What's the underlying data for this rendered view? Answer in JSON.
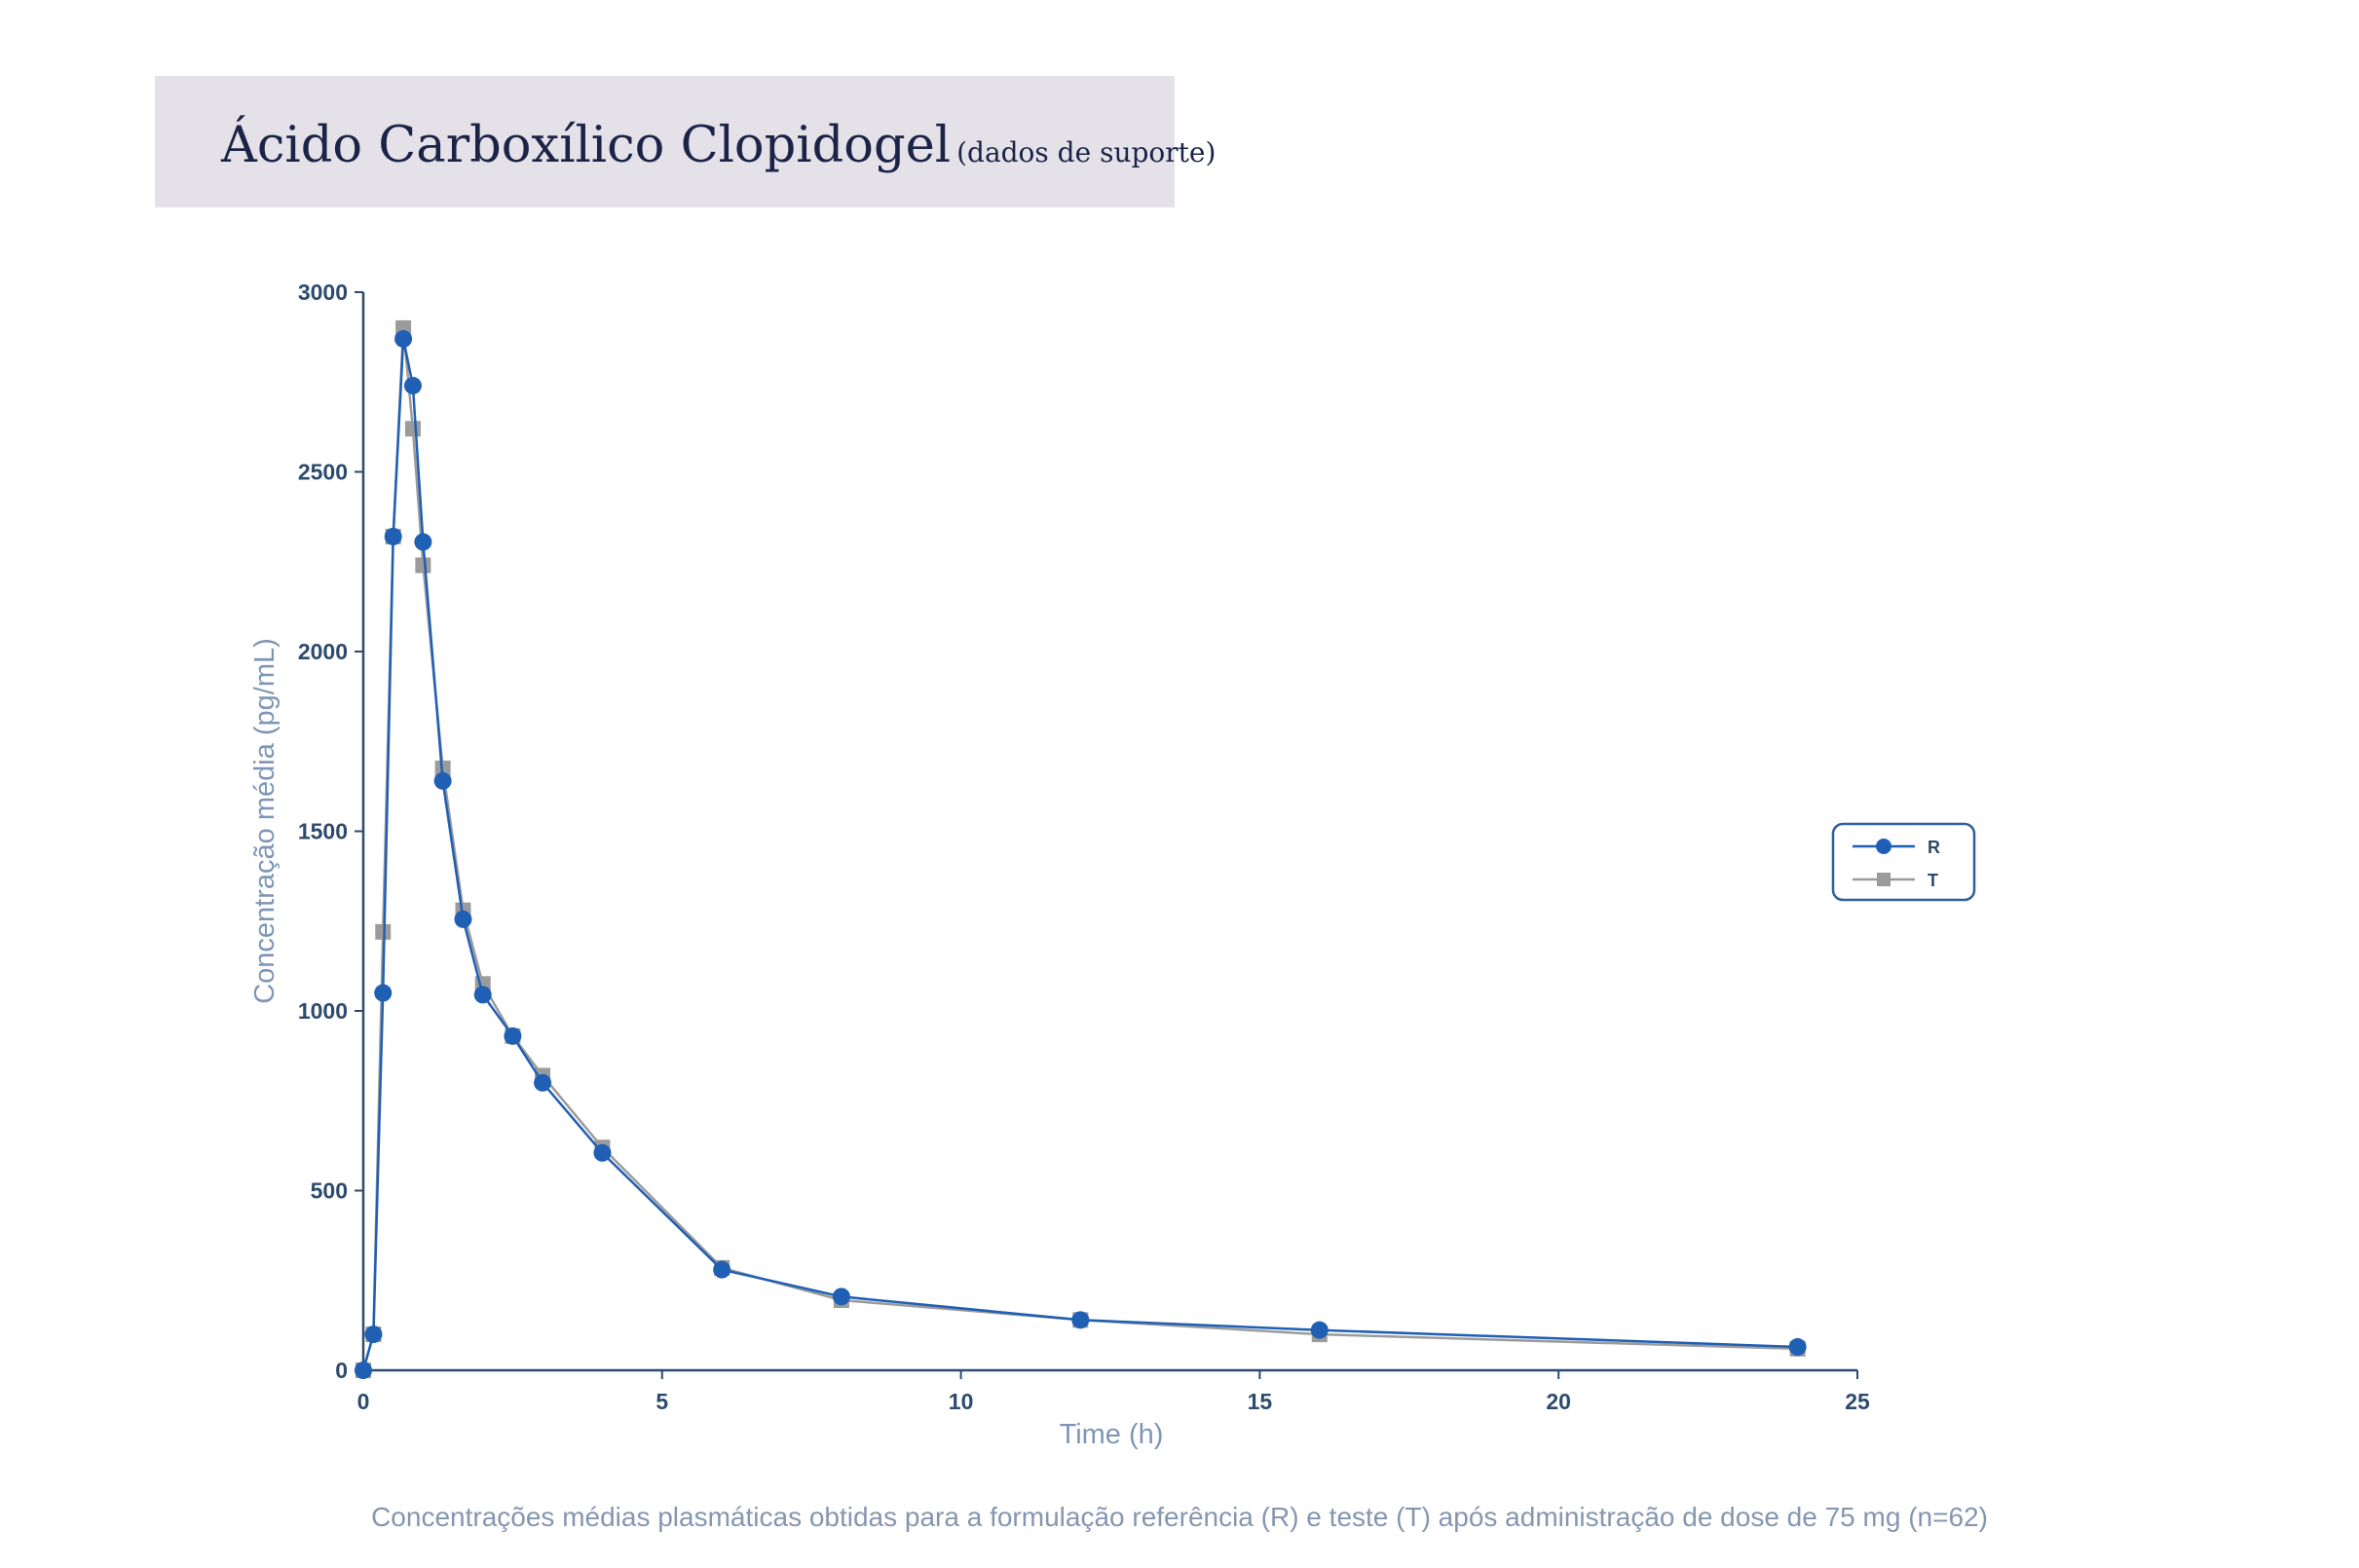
{
  "header": {
    "title": "Ácido Carboxílico Clopidogel",
    "subtitle": "(dados de suporte)"
  },
  "caption": "Concentrações médias plasmáticas obtidas para a formulação referência (R)  e teste (T) após administração de dose de 75 mg (n=62)",
  "colors": {
    "series_R": "#1f5fb4",
    "series_T": "#9b9b9b",
    "axis": "#2e4a6d",
    "title_bg": "#e4e2e8"
  },
  "chart_data": {
    "type": "line",
    "xlabel": "Time (h)",
    "ylabel": "Concentração média (pg/mL)",
    "xlim": [
      0,
      25
    ],
    "ylim": [
      0,
      3000
    ],
    "xticks": [
      0,
      5,
      10,
      15,
      20,
      25
    ],
    "yticks": [
      0,
      500,
      1000,
      1500,
      2000,
      2500,
      3000
    ],
    "grid": false,
    "legend_position": "right",
    "series": [
      {
        "name": "R",
        "marker": "circle",
        "x": [
          0,
          0.17,
          0.33,
          0.5,
          0.67,
          0.83,
          1.0,
          1.33,
          1.67,
          2.0,
          2.5,
          3.0,
          4.0,
          6.0,
          8.0,
          12.0,
          16.0,
          24.0
        ],
        "y": [
          0,
          100,
          1050,
          2320,
          2870,
          2740,
          2305,
          1640,
          1255,
          1045,
          930,
          800,
          605,
          280,
          205,
          140,
          112,
          65
        ]
      },
      {
        "name": "T",
        "marker": "square",
        "x": [
          0,
          0.17,
          0.33,
          0.5,
          0.67,
          0.83,
          1.0,
          1.33,
          1.67,
          2.0,
          2.5,
          3.0,
          4.0,
          6.0,
          8.0,
          12.0,
          16.0,
          24.0
        ],
        "y": [
          0,
          100,
          1220,
          2320,
          2900,
          2620,
          2240,
          1675,
          1280,
          1075,
          930,
          820,
          620,
          285,
          195,
          140,
          100,
          60
        ]
      }
    ]
  }
}
